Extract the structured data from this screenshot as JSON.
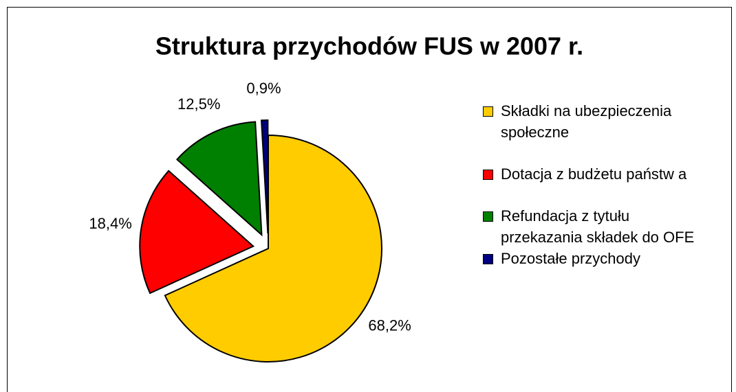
{
  "chart_data": {
    "type": "pie",
    "title": "Struktura przychodów FUS w 2007 r.",
    "categories": [
      "Składki na ubezpieczenia społeczne",
      "Dotacja z budżetu państw a",
      "Refundacja z tytułu przekazania składek do OFE",
      "Pozostałe przychody"
    ],
    "values": [
      68.2,
      18.4,
      12.5,
      0.9
    ],
    "value_labels": [
      "68,2%",
      "18,4%",
      "12,5%",
      "0,9%"
    ],
    "colors": [
      "#ffcc00",
      "#ff0000",
      "#008000",
      "#000080"
    ],
    "legend": "right"
  }
}
